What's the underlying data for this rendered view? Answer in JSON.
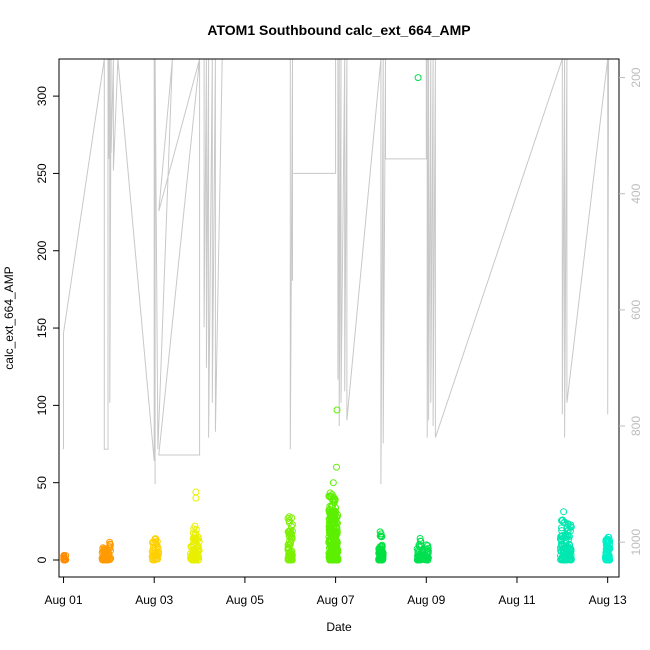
{
  "chart_data": {
    "type": "scatter",
    "title": "ATOM1 Southbound calc_ext_664_AMP",
    "xlabel": "Date",
    "ylabel": "calc_ext_664_AMP",
    "xlim": [
      -0.1,
      12.25
    ],
    "ylim": [
      -11,
      324
    ],
    "x_ticks": [
      {
        "label": "Aug 01",
        "day": 0
      },
      {
        "label": "Aug 03",
        "day": 2
      },
      {
        "label": "Aug 05",
        "day": 4
      },
      {
        "label": "Aug 07",
        "day": 6
      },
      {
        "label": "Aug 09",
        "day": 8
      },
      {
        "label": "Aug 11",
        "day": 10
      },
      {
        "label": "Aug 13",
        "day": 12
      }
    ],
    "y_ticks": [
      0,
      50,
      100,
      150,
      200,
      250,
      300
    ],
    "secondary_axis": {
      "side": "right",
      "reversed": true,
      "color": "#bdbdbd",
      "ylim": [
        1060,
        168
      ],
      "ticks": [
        200,
        400,
        600,
        800,
        1000
      ]
    },
    "secondary_series": {
      "color": "#c8c8c8",
      "points": [
        [
          0.0,
          840
        ],
        [
          0.0,
          640
        ],
        [
          0.9,
          168
        ],
        [
          0.9,
          840
        ],
        [
          0.98,
          840
        ],
        [
          0.98,
          168
        ],
        [
          1.0,
          168
        ],
        [
          1.0,
          340
        ],
        [
          1.02,
          168
        ],
        [
          1.02,
          760
        ],
        [
          1.05,
          168
        ],
        [
          1.05,
          330
        ],
        [
          1.1,
          168
        ],
        [
          1.1,
          360
        ],
        [
          1.2,
          168
        ],
        [
          2.0,
          860
        ],
        [
          2.0,
          168
        ],
        [
          2.02,
          900
        ],
        [
          2.02,
          168
        ],
        [
          2.08,
          840
        ],
        [
          2.4,
          168
        ],
        [
          2.1,
          430
        ],
        [
          3.0,
          168
        ],
        [
          2.1,
          850
        ],
        [
          3.0,
          850
        ],
        [
          3.0,
          168
        ],
        [
          3.1,
          168
        ],
        [
          3.1,
          630
        ],
        [
          3.15,
          168
        ],
        [
          3.15,
          700
        ],
        [
          3.2,
          168
        ],
        [
          3.2,
          820
        ],
        [
          3.28,
          168
        ],
        [
          3.28,
          760
        ],
        [
          3.35,
          168
        ],
        [
          3.35,
          810
        ],
        [
          3.5,
          168
        ],
        [
          4.5,
          168
        ],
        [
          5.0,
          168
        ],
        [
          5.0,
          840
        ],
        [
          5.05,
          168
        ],
        [
          5.05,
          550
        ],
        [
          5.05,
          365
        ],
        [
          6.0,
          365
        ],
        [
          6.0,
          168
        ],
        [
          6.05,
          168
        ],
        [
          6.05,
          720
        ],
        [
          6.08,
          168
        ],
        [
          6.08,
          800
        ],
        [
          6.12,
          168
        ],
        [
          6.12,
          760
        ],
        [
          6.2,
          168
        ],
        [
          6.2,
          740
        ],
        [
          6.25,
          168
        ],
        [
          6.25,
          790
        ],
        [
          7.0,
          168
        ],
        [
          7.0,
          900
        ],
        [
          7.05,
          168
        ],
        [
          7.05,
          830
        ],
        [
          7.1,
          168
        ],
        [
          7.1,
          340
        ],
        [
          7.1,
          340
        ],
        [
          8.0,
          340
        ],
        [
          8.0,
          168
        ],
        [
          8.02,
          168
        ],
        [
          8.02,
          820
        ],
        [
          8.05,
          168
        ],
        [
          8.05,
          790
        ],
        [
          8.1,
          168
        ],
        [
          8.1,
          760
        ],
        [
          8.15,
          168
        ],
        [
          8.15,
          800
        ],
        [
          8.2,
          168
        ],
        [
          8.2,
          820
        ],
        [
          11.0,
          168
        ],
        [
          11.0,
          780
        ],
        [
          11.05,
          168
        ],
        [
          11.05,
          820
        ],
        [
          11.1,
          168
        ],
        [
          11.1,
          760
        ],
        [
          12.0,
          168
        ],
        [
          12.0,
          780
        ],
        [
          12.02,
          168
        ]
      ]
    },
    "series": [
      {
        "color": "#ff8c00",
        "clusters": [
          [
            0.0,
            0.05,
            0,
            3,
            20
          ]
        ]
      },
      {
        "color": "#ff9a00",
        "clusters": [
          [
            0.85,
            1.05,
            0,
            8,
            50
          ],
          [
            1.0,
            1.05,
            8,
            12,
            4
          ]
        ]
      },
      {
        "color": "#ffd000",
        "clusters": [
          [
            1.95,
            2.1,
            0,
            14,
            40
          ]
        ]
      },
      {
        "color": "#e8f000",
        "clusters": [
          [
            2.8,
            3.0,
            0,
            15,
            80
          ],
          [
            2.85,
            2.95,
            15,
            24,
            6
          ]
        ],
        "points": [
          [
            2.92,
            40
          ],
          [
            2.92,
            44
          ]
        ]
      },
      {
        "color": "#7cf000",
        "clusters": [
          [
            4.95,
            5.05,
            0,
            28,
            60
          ]
        ]
      },
      {
        "color": "#5cf000",
        "clusters": [
          [
            5.85,
            6.05,
            0,
            30,
            200
          ],
          [
            5.85,
            6.0,
            30,
            45,
            40
          ]
        ],
        "points": [
          [
            5.95,
            50
          ],
          [
            6.02,
            60
          ],
          [
            6.03,
            97
          ]
        ]
      },
      {
        "color": "#00e040",
        "clusters": [
          [
            6.95,
            7.05,
            0,
            10,
            60
          ],
          [
            6.98,
            7.02,
            15,
            19,
            6
          ]
        ]
      },
      {
        "color": "#00e050",
        "clusters": [
          [
            7.8,
            8.05,
            0,
            10,
            70
          ],
          [
            7.85,
            7.9,
            12,
            18,
            3
          ]
        ],
        "points": [
          [
            7.82,
            312
          ]
        ]
      },
      {
        "color": "#00e8b0",
        "clusters": [
          [
            10.95,
            11.2,
            0,
            24,
            110
          ],
          [
            10.98,
            11.05,
            24,
            32,
            6
          ]
        ]
      },
      {
        "color": "#00f0c8",
        "clusters": [
          [
            11.95,
            12.05,
            0,
            15,
            60
          ]
        ]
      }
    ]
  }
}
